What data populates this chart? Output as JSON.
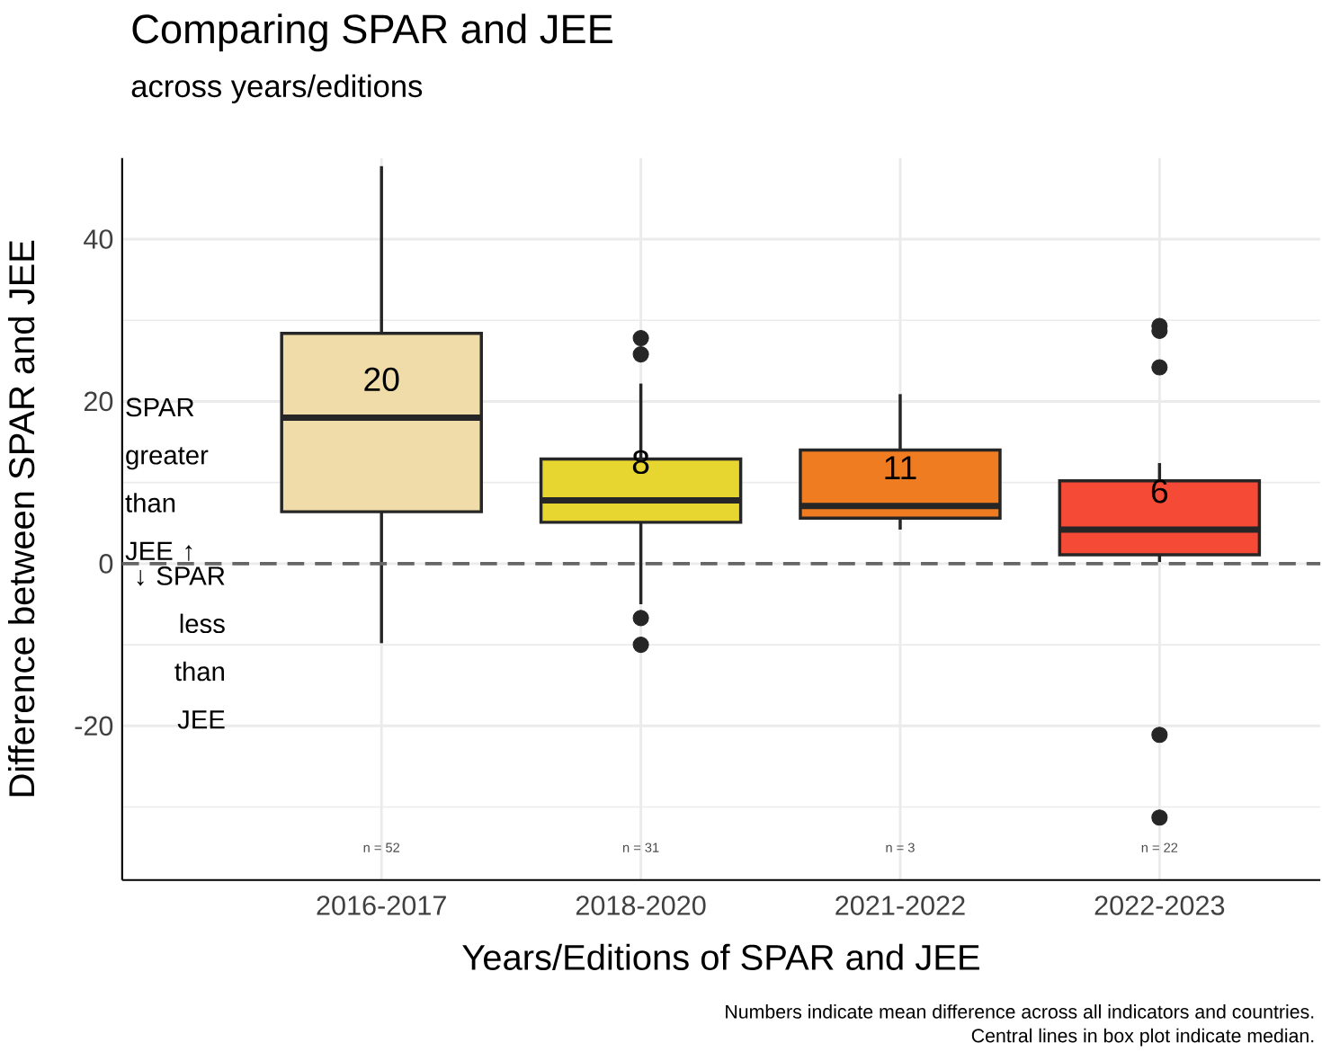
{
  "chart_data": {
    "type": "box",
    "title": "Comparing SPAR and JEE",
    "subtitle": "across years/editions",
    "xlabel": "Years/Editions of SPAR and JEE",
    "ylabel": "Difference between SPAR and JEE",
    "categories": [
      "2016-2017",
      "2018-2020",
      "2021-2022",
      "2022-2023"
    ],
    "colors": [
      "#f0dca8",
      "#e8d630",
      "#f07c22",
      "#f44a36"
    ],
    "boxes": [
      {
        "low": -9.8,
        "q1": 6.4,
        "median": 18,
        "q3": 28.4,
        "high": 49
      },
      {
        "low": -5,
        "q1": 5.1,
        "median": 7.8,
        "q3": 12.9,
        "high": 22.2,
        "outliers": [
          27.8,
          25.8,
          -6.7,
          -10
        ]
      },
      {
        "low": 4.2,
        "q1": 5.6,
        "median": 7.1,
        "q3": 14,
        "high": 20.9
      },
      {
        "low": 0.2,
        "q1": 1.1,
        "median": 4.2,
        "q3": 10.2,
        "high": 12.4,
        "outliers": [
          29.3,
          28.7,
          24.2,
          -21.1,
          -31.3
        ]
      }
    ],
    "ylim": [
      -39,
      50
    ],
    "yticks": [
      -20,
      0,
      20,
      40
    ],
    "grid": true,
    "ref_lines": [
      {
        "axis": "y",
        "value": 0,
        "color": "#666666",
        "line_style": "dashed"
      }
    ],
    "annotations": [
      "20",
      "8",
      "11",
      "6",
      "n = 52",
      "n = 31",
      "n = 3",
      "n = 22",
      "SPAR greater than JEE ↑",
      "↓ SPAR less than JEE",
      "Numbers indicate mean difference across all indicators and countries.",
      "Central lines in box plot indicate median."
    ]
  }
}
